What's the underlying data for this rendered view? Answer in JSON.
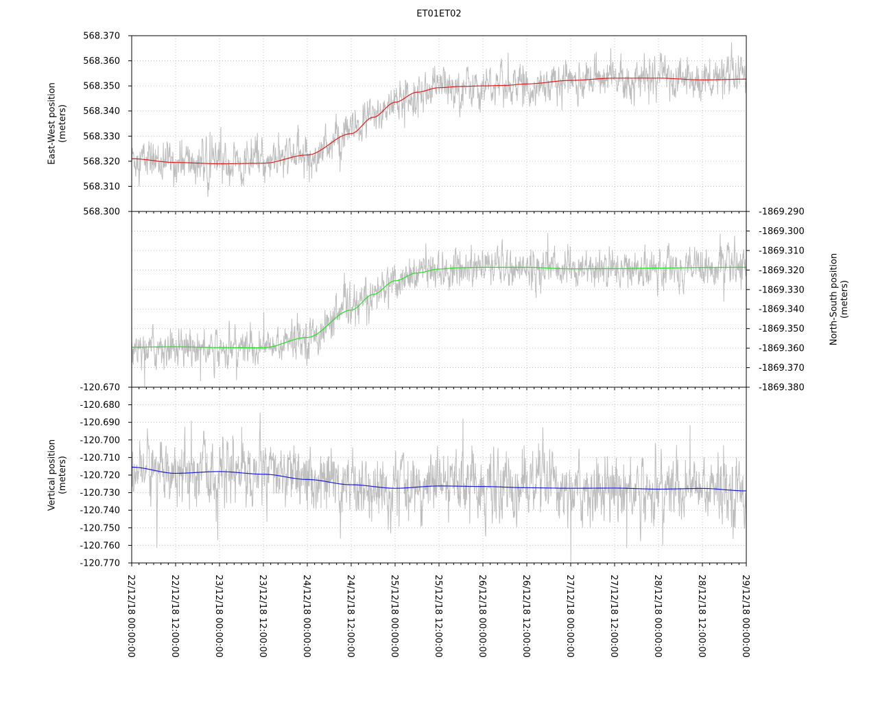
{
  "chart_data": {
    "type": "line",
    "title": "ET01ET02",
    "x_tick_labels": [
      "22/12/18 00:00:00",
      "22/12/18 12:00:00",
      "23/12/18 00:00:00",
      "23/12/18 12:00:00",
      "24/12/18 00:00:00",
      "24/12/18 12:00:00",
      "25/12/18 00:00:00",
      "25/12/18 12:00:00",
      "26/12/18 00:00:00",
      "26/12/18 12:00:00",
      "27/12/18 00:00:00",
      "27/12/18 12:00:00",
      "28/12/18 00:00:00",
      "28/12/18 12:00:00",
      "29/12/18 00:00:00"
    ],
    "xlim": [
      "22/12/18 00:00:00",
      "29/12/18 00:00:00"
    ],
    "grid": true,
    "panels": [
      {
        "id": "east-west",
        "ylabel_line1": "East-West position",
        "ylabel_line2": "(meters)",
        "y_axis_side": "left",
        "ylim": [
          568.3,
          568.37
        ],
        "y_ticks": [
          "568.300",
          "568.310",
          "568.320",
          "568.330",
          "568.340",
          "568.350",
          "568.360",
          "568.370"
        ],
        "raw_color": "#bdbdbd",
        "fit_color": "#e31a1c",
        "raw_noise": 0.0045,
        "raw_spikes": 0.004,
        "fit_x_days": [
          0,
          0.5,
          1.0,
          1.5,
          2.0,
          2.5,
          2.75,
          3.0,
          3.25,
          3.5,
          3.75,
          4.0,
          4.25,
          4.5,
          5.0,
          5.5,
          6.0,
          6.5,
          7.0
        ],
        "fit_y": [
          568.321,
          568.3195,
          568.319,
          568.3192,
          568.3225,
          568.331,
          568.3375,
          568.3435,
          568.3475,
          568.3493,
          568.3498,
          568.35,
          568.3502,
          568.3508,
          568.3522,
          568.3531,
          568.3531,
          568.3524,
          568.3527
        ]
      },
      {
        "id": "north-south",
        "ylabel_line1": "North-South position",
        "ylabel_line2": "(meters)",
        "y_axis_side": "right",
        "ylim": [
          -1869.38,
          -1869.29
        ],
        "y_ticks": [
          "-1869.380",
          "-1869.370",
          "-1869.360",
          "-1869.350",
          "-1869.340",
          "-1869.330",
          "-1869.320",
          "-1869.310",
          "-1869.300",
          "-1869.290"
        ],
        "raw_color": "#bdbdbd",
        "fit_color": "#22e022",
        "raw_noise": 0.0055,
        "raw_spikes": 0.006,
        "fit_x_days": [
          0,
          0.5,
          1.0,
          1.5,
          2.0,
          2.5,
          2.75,
          3.0,
          3.25,
          3.5,
          3.75,
          4.0,
          4.5,
          5.0,
          5.5,
          6.0,
          6.5,
          7.0
        ],
        "fit_y": [
          -1869.3595,
          -1869.3593,
          -1869.3597,
          -1869.3598,
          -1869.3545,
          -1869.3405,
          -1869.3325,
          -1869.3255,
          -1869.3215,
          -1869.3195,
          -1869.3188,
          -1869.3186,
          -1869.3186,
          -1869.3194,
          -1869.3193,
          -1869.319,
          -1869.3187,
          -1869.3186
        ]
      },
      {
        "id": "vertical",
        "ylabel_line1": "Vertical position",
        "ylabel_line2": "(meters)",
        "y_axis_side": "left",
        "ylim": [
          -120.77,
          -120.67
        ],
        "y_ticks": [
          "-120.770",
          "-120.760",
          "-120.750",
          "-120.740",
          "-120.730",
          "-120.720",
          "-120.710",
          "-120.700",
          "-120.690",
          "-120.680",
          "-120.670"
        ],
        "raw_color": "#bdbdbd",
        "fit_color": "#1a1ae6",
        "raw_noise": 0.0105,
        "raw_spikes": 0.012,
        "fit_x_days": [
          0,
          0.5,
          1.0,
          1.5,
          2.0,
          2.5,
          3.0,
          3.5,
          4.0,
          4.5,
          5.0,
          5.5,
          6.0,
          6.5,
          7.0
        ],
        "fit_y": [
          -120.7155,
          -120.719,
          -120.718,
          -120.7195,
          -120.7225,
          -120.7255,
          -120.7275,
          -120.7262,
          -120.7265,
          -120.7272,
          -120.7275,
          -120.7274,
          -120.728,
          -120.7276,
          -120.729
        ]
      }
    ]
  }
}
